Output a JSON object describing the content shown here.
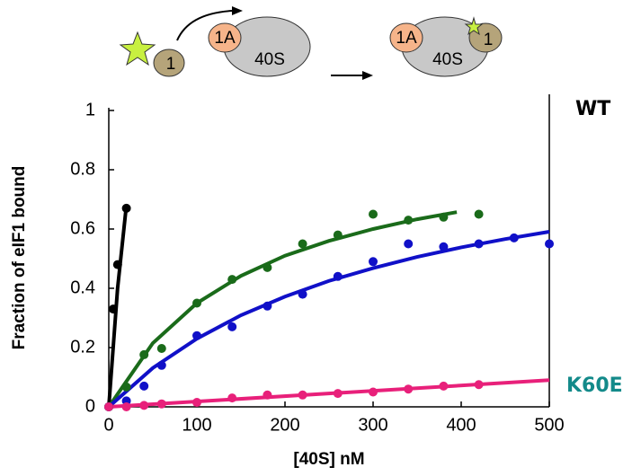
{
  "diagram": {
    "left_factor": "1",
    "left_1a": "1A",
    "left_40s": "40S",
    "right_1a": "1A",
    "right_40s": "40S",
    "right_factor": "1"
  },
  "chart_data": {
    "type": "scatter",
    "x_label": "[40S] nM",
    "y_label": "Fraction of eIF1 bound",
    "annotations": [
      "WT",
      "K60E"
    ],
    "xlim": [
      0,
      500
    ],
    "ylim": [
      0,
      1
    ],
    "xticks": [
      0,
      100,
      200,
      300,
      400,
      500
    ],
    "yticks": [
      0,
      0.2,
      0.4,
      0.6,
      0.8,
      1
    ],
    "series": [
      {
        "color": "#000000",
        "x": [
          0,
          5,
          10,
          20
        ],
        "values": [
          0,
          0.33,
          0.48,
          0.67
        ]
      },
      {
        "color": "#1a6b1a",
        "x": [
          0,
          20,
          40,
          60,
          100,
          140,
          180,
          220,
          260,
          300,
          340,
          380,
          420
        ],
        "values": [
          0,
          0.067,
          0.176,
          0.197,
          0.35,
          0.43,
          0.47,
          0.55,
          0.58,
          0.65,
          0.63,
          0.64,
          0.65
        ]
      },
      {
        "color": "#1010c8",
        "x": [
          0,
          20,
          40,
          60,
          100,
          140,
          180,
          220,
          260,
          300,
          340,
          380,
          420,
          460,
          500
        ],
        "values": [
          0,
          0.02,
          0.07,
          0.14,
          0.24,
          0.27,
          0.34,
          0.38,
          0.44,
          0.49,
          0.55,
          0.54,
          0.55,
          0.57,
          0.55
        ]
      },
      {
        "color": "#e8207a",
        "x": [
          0,
          20,
          40,
          60,
          100,
          140,
          180,
          220,
          260,
          300,
          340,
          380,
          420
        ],
        "values": [
          0,
          0,
          0.005,
          0.01,
          0.015,
          0.03,
          0.04,
          0.04,
          0.045,
          0.05,
          0.06,
          0.07,
          0.075
        ]
      }
    ],
    "fits": [
      {
        "color": "#000000",
        "x": [
          0,
          10,
          20
        ],
        "values": [
          0,
          0.4,
          0.68
        ]
      },
      {
        "color": "#1a6b1a",
        "x": [
          0,
          50,
          100,
          150,
          200,
          250,
          300,
          350,
          395
        ],
        "values": [
          0,
          0.215,
          0.35,
          0.442,
          0.51,
          0.56,
          0.6,
          0.633,
          0.657
        ]
      },
      {
        "color": "#1010c8",
        "x": [
          0,
          50,
          100,
          150,
          200,
          250,
          300,
          350,
          400,
          450,
          500
        ],
        "values": [
          0,
          0.131,
          0.23,
          0.309,
          0.372,
          0.425,
          0.468,
          0.506,
          0.538,
          0.566,
          0.591
        ]
      },
      {
        "color": "#e8207a",
        "x": [
          0,
          500
        ],
        "values": [
          0,
          0.09
        ]
      }
    ]
  }
}
